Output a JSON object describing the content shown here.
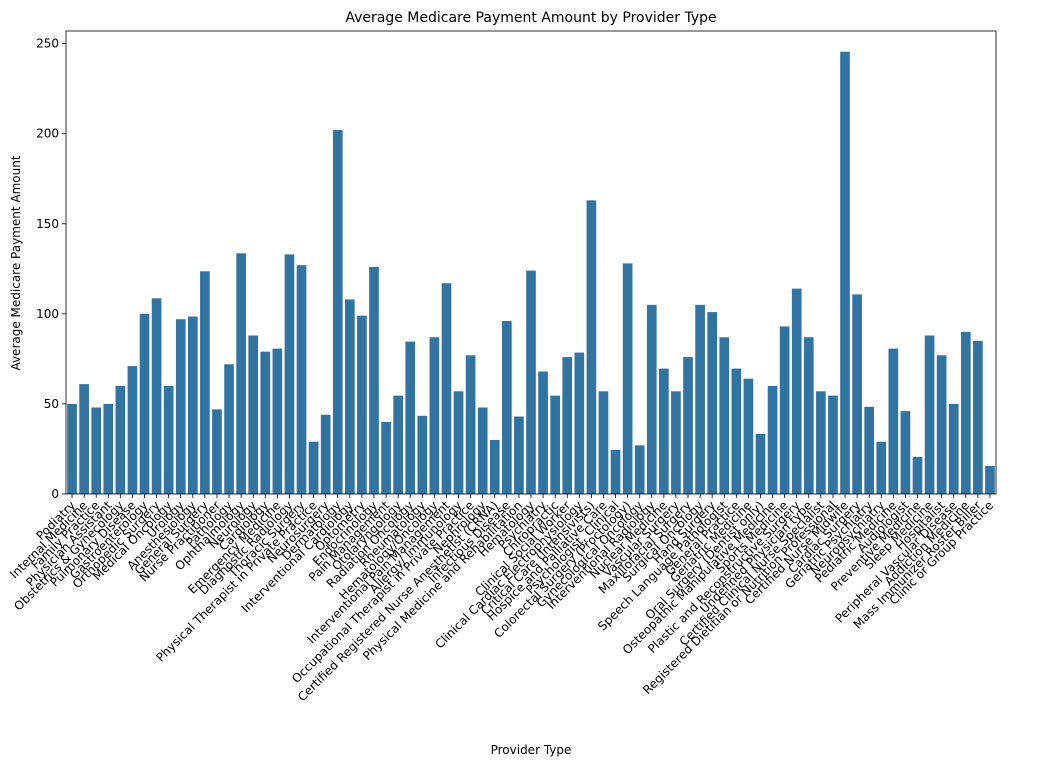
{
  "chart_data": {
    "type": "bar",
    "title": "Average Medicare Payment Amount by Provider Type",
    "x_label": "Provider Type",
    "y_label": "Average Medicare Payment Amount",
    "color": "#3274a1",
    "categories": [
      "Podiatry",
      "Internal Medicine",
      "Family Practice",
      "Physician Assistant",
      "Obstetrics & Gynecology",
      "Pulmonary Disease",
      "Gastroenterology",
      "Orthopedic Surgery",
      "Medical Oncology",
      "Urology",
      "Anesthesiology",
      "General Surgery",
      "Nurse Practitioner",
      "Pathology",
      "Ophthalmology",
      "Neurology",
      "Cardiology",
      "Emergency Medicine",
      "Diagnostic Radiology",
      "Thoracic Surgery",
      "Physical Therapist in Private Practice",
      "Neurosurgery",
      "Dermatology",
      "Interventional Cardiology",
      "Optometry",
      "Endocrinology",
      "Pain Management",
      "Otolaryngology",
      "Radiation Oncology",
      "Rheumatology",
      "Hematology/Oncology",
      "Interventional Pain Management",
      "Allergy/ Immunology",
      "Occupational Therapist in Private Practice",
      "Nephrology",
      "Certified Registered Nurse Anesthetist (CRNA)",
      "Infectious Disease",
      "Physical Medicine and Rehabilitation",
      "Hematology",
      "Psychiatry",
      "Chiropractic",
      "Clinical Social Worker",
      "Clinical Cardiac Electrophysiology",
      "Critical Care (Intensivists)",
      "Hospice and Palliative Care",
      "Psychologist, Clinical",
      "Colorectal Surgery (Proctology)",
      "Gynecological Oncology",
      "Interventional Radiology",
      "Nuclear Medicine",
      "Vascular Surgery",
      "Maxillofacial Surgery",
      "Surgical Oncology",
      "Hand Surgery",
      "Speech Language Pathologist",
      "General Practice",
      "Geriatric Medicine",
      "Oral Surgery (Dentist only)",
      "Osteopathic Manipulative Medicine",
      "Sports Medicine",
      "Plastic and Reconstructive Surgery",
      "Undefined Physician type",
      "Certified Clinical Nurse Specialist",
      "Registered Dietitian or Nutrition Professional",
      "Certified Nurse Midwife",
      "Cardiac Surgery",
      "Geriatric Psychiatry",
      "Neuropsychiatry",
      "Pediatric Medicine",
      "Audiologist",
      "Preventive Medicine",
      "Sleep Medicine",
      "Hospitalist",
      "Peripheral Vascular Disease",
      "Addiction Medicine",
      "Mass Immunizer Roster Biller",
      "Clinic or Group Practice"
    ],
    "values": [
      50,
      61,
      48,
      50,
      60,
      71,
      100,
      108.6,
      60,
      97,
      98.5,
      123.6,
      47,
      72,
      133.6,
      88,
      79,
      80.7,
      133,
      127,
      29,
      44,
      202,
      108,
      99,
      126,
      40,
      54.6,
      84.6,
      43.4,
      87,
      117,
      57,
      77,
      48,
      30,
      96,
      43,
      124,
      68,
      54.6,
      76,
      78.5,
      163,
      57,
      24.5,
      128,
      27,
      105,
      69.6,
      57,
      76,
      105,
      101,
      87,
      69.6,
      64,
      33.4,
      60,
      93,
      114,
      87,
      57,
      54.6,
      245.5,
      110.8,
      48.4,
      29,
      80.7,
      46,
      20.6,
      88,
      77,
      50,
      90,
      85,
      15.6
    ],
    "ylim": [
      0,
      257
    ],
    "yticks": [
      0,
      50,
      100,
      150,
      200,
      250
    ]
  }
}
